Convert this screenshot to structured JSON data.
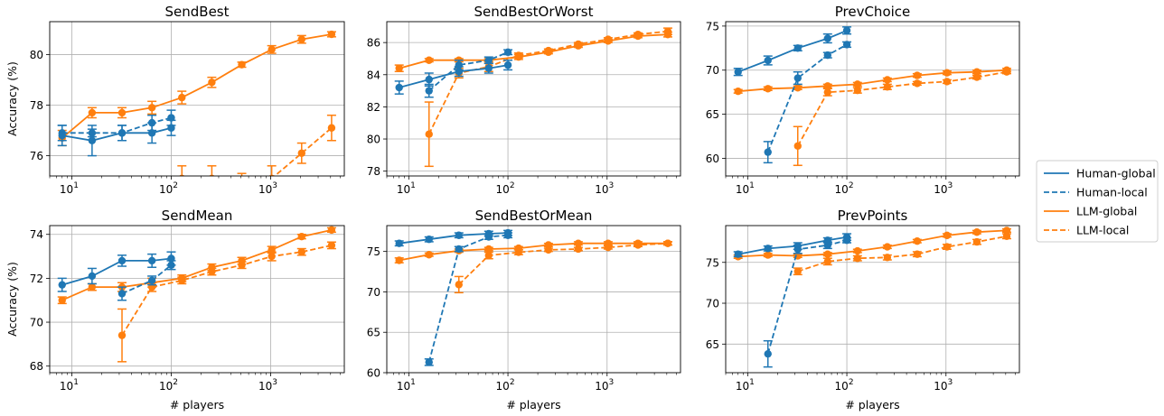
{
  "legend": {
    "placement": "right",
    "entries": [
      {
        "label": "Human-global",
        "color": "#1f77b4",
        "dash": false
      },
      {
        "label": "Human-local",
        "color": "#1f77b4",
        "dash": true
      },
      {
        "label": "LLM-global",
        "color": "#ff7f0e",
        "dash": false
      },
      {
        "label": "LLM-local",
        "color": "#ff7f0e",
        "dash": true
      }
    ]
  },
  "xlabel": "# players",
  "ylabel": "Accuracy (%)",
  "chart_data": [
    {
      "type": "line",
      "title": "SendBest",
      "ylim": [
        75.2,
        81.3
      ],
      "yticks": [
        76,
        78,
        80
      ],
      "xscale": "log",
      "xlim": [
        6,
        5500
      ],
      "series": [
        {
          "name": "Human-global",
          "x": [
            8,
            16,
            32,
            64,
            100
          ],
          "y": [
            76.8,
            76.6,
            76.9,
            76.9,
            77.1
          ],
          "err": [
            0.4,
            0.6,
            0.3,
            0.4,
            0.3
          ]
        },
        {
          "name": "Human-local",
          "x": [
            8,
            16,
            32,
            64,
            100
          ],
          "y": [
            76.9,
            76.9,
            76.9,
            77.3,
            77.5
          ],
          "err": [
            0.3,
            0.15,
            0.3,
            0.3,
            0.3
          ]
        },
        {
          "name": "LLM-global",
          "x": [
            8,
            16,
            32,
            64,
            128,
            256,
            512,
            1024,
            2048,
            4096
          ],
          "y": [
            76.7,
            77.7,
            77.7,
            77.9,
            78.3,
            78.9,
            79.6,
            80.2,
            80.6,
            80.8
          ],
          "err": [
            0.3,
            0.2,
            0.2,
            0.25,
            0.25,
            0.2,
            0.1,
            0.15,
            0.15,
            0.1
          ]
        },
        {
          "name": "LLM-local",
          "x": [
            128,
            256,
            512,
            1024,
            2048,
            4096
          ],
          "y": [
            75.1,
            75.1,
            74.9,
            75.1,
            76.1,
            77.1
          ],
          "err": [
            0.5,
            0.5,
            0.4,
            0.5,
            0.4,
            0.5
          ]
        }
      ]
    },
    {
      "type": "line",
      "title": "SendBestOrWorst",
      "ylim": [
        77.7,
        87.3
      ],
      "yticks": [
        78,
        80,
        82,
        84,
        86
      ],
      "xscale": "log",
      "xlim": [
        6,
        5500
      ],
      "series": [
        {
          "name": "Human-global",
          "x": [
            8,
            16,
            32,
            64,
            100
          ],
          "y": [
            83.2,
            83.7,
            84.2,
            84.4,
            84.6
          ],
          "err": [
            0.4,
            0.4,
            0.3,
            0.3,
            0.3
          ]
        },
        {
          "name": "Human-local",
          "x": [
            16,
            32,
            64,
            100
          ],
          "y": [
            83.0,
            84.6,
            84.9,
            85.4
          ],
          "err": [
            0.4,
            0.3,
            0.2,
            0.15
          ]
        },
        {
          "name": "LLM-global",
          "x": [
            8,
            16,
            32,
            64,
            128,
            256,
            512,
            1024,
            2048,
            4096
          ],
          "y": [
            84.4,
            84.9,
            84.9,
            84.9,
            85.1,
            85.4,
            85.8,
            86.1,
            86.4,
            86.5
          ],
          "err": [
            0.2,
            0.1,
            0.1,
            0.1,
            0.15,
            0.1,
            0.1,
            0.1,
            0.1,
            0.15
          ]
        },
        {
          "name": "LLM-local",
          "x": [
            16,
            32,
            64,
            128,
            256,
            512,
            1024,
            2048,
            4096
          ],
          "y": [
            80.3,
            84.1,
            84.5,
            85.2,
            85.5,
            85.9,
            86.2,
            86.5,
            86.7
          ],
          "err": [
            2.0,
            0.3,
            0.3,
            0.15,
            0.1,
            0.1,
            0.1,
            0.1,
            0.2
          ]
        }
      ]
    },
    {
      "type": "line",
      "title": "PrevChoice",
      "ylim": [
        58.0,
        75.5
      ],
      "yticks": [
        60,
        65,
        70,
        75
      ],
      "xscale": "log",
      "xlim": [
        6,
        5500
      ],
      "series": [
        {
          "name": "Human-global",
          "x": [
            8,
            16,
            32,
            64,
            100
          ],
          "y": [
            69.8,
            71.1,
            72.5,
            73.6,
            74.5
          ],
          "err": [
            0.4,
            0.5,
            0.3,
            0.5,
            0.4
          ]
        },
        {
          "name": "Human-local",
          "x": [
            16,
            32,
            64,
            100
          ],
          "y": [
            60.7,
            69.1,
            71.7,
            72.9
          ],
          "err": [
            1.2,
            0.7,
            0.3,
            0.3
          ]
        },
        {
          "name": "LLM-global",
          "x": [
            8,
            16,
            32,
            64,
            128,
            256,
            512,
            1024,
            2048,
            4096
          ],
          "y": [
            67.6,
            67.9,
            68.0,
            68.2,
            68.4,
            68.9,
            69.4,
            69.7,
            69.8,
            70.0
          ],
          "err": [
            0.2,
            0.2,
            0.2,
            0.2,
            0.2,
            0.2,
            0.2,
            0.2,
            0.2,
            0.2
          ]
        },
        {
          "name": "LLM-local",
          "x": [
            32,
            64,
            128,
            256,
            512,
            1024,
            2048,
            4096
          ],
          "y": [
            61.4,
            67.5,
            67.7,
            68.1,
            68.5,
            68.7,
            69.2,
            69.8
          ],
          "err": [
            2.2,
            0.4,
            0.3,
            0.3,
            0.2,
            0.2,
            0.2,
            0.2
          ]
        }
      ]
    },
    {
      "type": "line",
      "title": "SendMean",
      "ylim": [
        67.7,
        74.4
      ],
      "yticks": [
        68,
        70,
        72,
        74
      ],
      "xscale": "log",
      "xlim": [
        6,
        5500
      ],
      "series": [
        {
          "name": "Human-global",
          "x": [
            8,
            16,
            32,
            64,
            100
          ],
          "y": [
            71.7,
            72.1,
            72.8,
            72.8,
            72.9
          ],
          "err": [
            0.3,
            0.35,
            0.25,
            0.3,
            0.3
          ]
        },
        {
          "name": "Human-local",
          "x": [
            32,
            64,
            100
          ],
          "y": [
            71.3,
            71.9,
            72.6
          ],
          "err": [
            0.3,
            0.2,
            0.2
          ]
        },
        {
          "name": "LLM-global",
          "x": [
            8,
            16,
            32,
            64,
            128,
            256,
            512,
            1024,
            2048,
            4096
          ],
          "y": [
            71.0,
            71.6,
            71.6,
            71.8,
            72.0,
            72.5,
            72.8,
            73.3,
            73.9,
            74.2
          ],
          "err": [
            0.15,
            0.15,
            0.2,
            0.2,
            0.15,
            0.15,
            0.15,
            0.15,
            0.1,
            0.1
          ]
        },
        {
          "name": "LLM-local",
          "x": [
            32,
            64,
            128,
            256,
            512,
            1024,
            2048,
            4096
          ],
          "y": [
            69.4,
            71.6,
            71.9,
            72.3,
            72.6,
            73.0,
            73.2,
            73.5
          ],
          "err": [
            1.2,
            0.2,
            0.15,
            0.15,
            0.15,
            0.2,
            0.15,
            0.15
          ]
        }
      ]
    },
    {
      "type": "line",
      "title": "SendBestOrMean",
      "ylim": [
        60.0,
        78.2
      ],
      "yticks": [
        60,
        65,
        70,
        75
      ],
      "xscale": "log",
      "xlim": [
        6,
        5500
      ],
      "series": [
        {
          "name": "Human-global",
          "x": [
            8,
            16,
            32,
            64,
            100
          ],
          "y": [
            76.0,
            76.5,
            77.0,
            77.2,
            77.3
          ],
          "err": [
            0.3,
            0.3,
            0.3,
            0.3,
            0.3
          ]
        },
        {
          "name": "Human-local",
          "x": [
            16,
            32,
            64,
            100
          ],
          "y": [
            61.3,
            75.3,
            76.8,
            77.0
          ],
          "err": [
            0.4,
            0.3,
            0.3,
            0.3
          ]
        },
        {
          "name": "LLM-global",
          "x": [
            8,
            16,
            32,
            64,
            128,
            256,
            512,
            1024,
            2048,
            4096
          ],
          "y": [
            73.9,
            74.6,
            75.1,
            75.3,
            75.4,
            75.8,
            76.0,
            76.0,
            76.0,
            76.0
          ],
          "err": [
            0.3,
            0.2,
            0.2,
            0.2,
            0.2,
            0.2,
            0.2,
            0.2,
            0.2,
            0.2
          ]
        },
        {
          "name": "LLM-local",
          "x": [
            32,
            64,
            128,
            256,
            512,
            1024,
            2048,
            4096
          ],
          "y": [
            70.9,
            74.5,
            74.9,
            75.2,
            75.3,
            75.5,
            75.8,
            76.0
          ],
          "err": [
            1.0,
            0.4,
            0.3,
            0.2,
            0.2,
            0.2,
            0.2,
            0.2
          ]
        }
      ]
    },
    {
      "type": "line",
      "title": "PrevPoints",
      "ylim": [
        61.5,
        79.5
      ],
      "yticks": [
        65,
        70,
        75
      ],
      "xscale": "log",
      "xlim": [
        6,
        5500
      ],
      "series": [
        {
          "name": "Human-global",
          "x": [
            8,
            16,
            32,
            64,
            100
          ],
          "y": [
            76.0,
            76.7,
            77.0,
            77.7,
            78.1
          ],
          "err": [
            0.3,
            0.3,
            0.4,
            0.3,
            0.4
          ]
        },
        {
          "name": "Human-local",
          "x": [
            16,
            32,
            64,
            100
          ],
          "y": [
            63.8,
            76.6,
            77.1,
            77.7
          ],
          "err": [
            1.6,
            0.5,
            0.4,
            0.3
          ]
        },
        {
          "name": "LLM-global",
          "x": [
            8,
            16,
            32,
            64,
            128,
            256,
            512,
            1024,
            2048,
            4096
          ],
          "y": [
            75.7,
            75.9,
            75.8,
            76.0,
            76.4,
            76.9,
            77.6,
            78.3,
            78.7,
            78.9
          ],
          "err": [
            0.2,
            0.2,
            0.2,
            0.2,
            0.2,
            0.2,
            0.2,
            0.2,
            0.2,
            0.2
          ]
        },
        {
          "name": "LLM-local",
          "x": [
            32,
            64,
            128,
            256,
            512,
            1024,
            2048,
            4096
          ],
          "y": [
            73.9,
            75.1,
            75.5,
            75.6,
            76.0,
            76.9,
            77.5,
            78.2
          ],
          "err": [
            0.4,
            0.4,
            0.3,
            0.3,
            0.3,
            0.3,
            0.3,
            0.3
          ]
        }
      ]
    }
  ]
}
